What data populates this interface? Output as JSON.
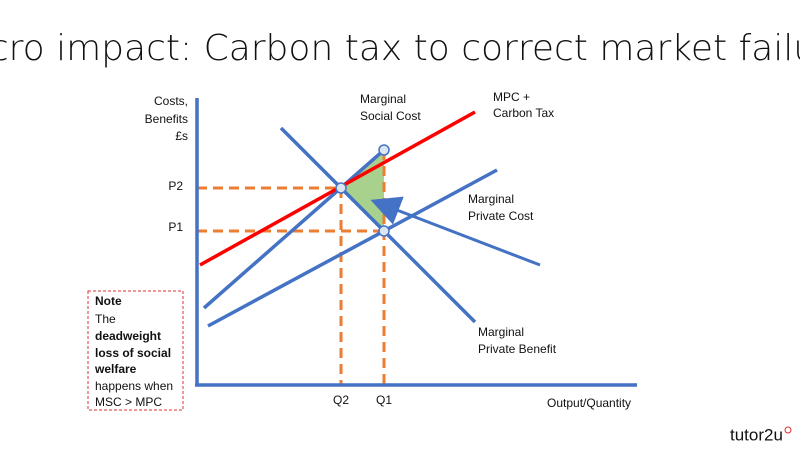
{
  "title": "Micro impact: Carbon tax to correct market failure",
  "axes": {
    "y_label": [
      "Costs,",
      "Benefits",
      "£s"
    ],
    "x_label": "Output/Quantity",
    "prices": [
      "P2",
      "P1"
    ],
    "quantities": [
      "Q2",
      "Q1"
    ]
  },
  "curves": [
    {
      "label": [
        "Marginal",
        "Social Cost"
      ]
    },
    {
      "label": [
        "MPC +",
        "Carbon Tax"
      ]
    },
    {
      "label": [
        "Marginal",
        "Private Cost"
      ]
    },
    {
      "label": [
        "Marginal",
        "Private Benefit"
      ]
    }
  ],
  "note": {
    "heading": "Note",
    "lines": [
      "The",
      "deadweight",
      "loss of social",
      "welfare",
      "happens when",
      "MSC > MPC"
    ]
  },
  "logo": "tutor2u"
}
